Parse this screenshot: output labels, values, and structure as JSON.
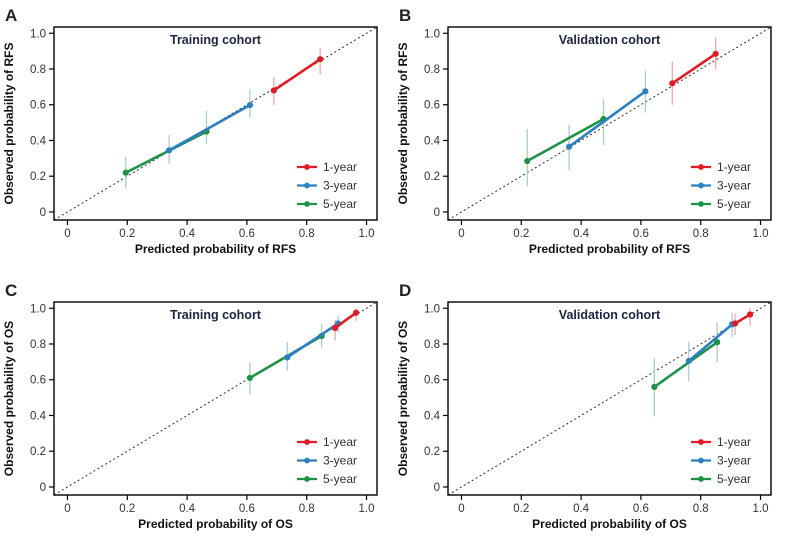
{
  "figure": {
    "description": "Calibration curves of nomograms, 2x2 panel grid",
    "background": "#ffffff",
    "frame_color": "#000000",
    "reference_line_color": "#1a1a1a",
    "title_color": "#1b2440",
    "tick_label_color": "#333333",
    "axis_title_color": "#111111",
    "legend_label_color": "#333333",
    "panel_letter_color": "#222222"
  },
  "chart_data": [
    {
      "type": "line",
      "panel_label": "A",
      "title": "Training cohort",
      "xlabel": "Predicted probability of RFS",
      "ylabel": "Observed probability of RFS",
      "xlim": [
        -0.045,
        1.035
      ],
      "ylim": [
        -0.045,
        1.035
      ],
      "ticks": [
        0,
        0.2,
        0.4,
        0.6,
        0.8,
        1.0
      ],
      "tick_labels": [
        "0",
        "0.2",
        "0.4",
        "0.6",
        "0.8",
        "1.0"
      ],
      "grid": false,
      "reference": "identity diagonal, dotted",
      "legend_position": "lower-right",
      "legend_order": [
        "1-year",
        "3-year",
        "5-year"
      ],
      "series": [
        {
          "name": "5-year",
          "color": "#1e9348",
          "ci_color": "#a7d4ae",
          "points": [
            [
              0.195,
              0.22,
              0.13,
              0.31
            ],
            [
              0.465,
              0.45,
              0.38,
              0.565
            ]
          ]
        },
        {
          "name": "3-year",
          "color": "#2d7fc1",
          "ci_color": "#a9cbe4",
          "points": [
            [
              0.34,
              0.345,
              0.27,
              0.43
            ],
            [
              0.61,
              0.598,
              0.525,
              0.685
            ]
          ]
        },
        {
          "name": "1-year",
          "color": "#e11b22",
          "ci_color": "#f5a6a6",
          "points": [
            [
              0.69,
              0.68,
              0.6,
              0.755
            ],
            [
              0.845,
              0.855,
              0.77,
              0.915
            ]
          ]
        }
      ]
    },
    {
      "type": "line",
      "panel_label": "B",
      "title": "Validation cohort",
      "xlabel": "Predicted probability of RFS",
      "ylabel": "Observed probability of RFS",
      "xlim": [
        -0.045,
        1.035
      ],
      "ylim": [
        -0.045,
        1.035
      ],
      "ticks": [
        0,
        0.2,
        0.4,
        0.6,
        0.8,
        1.0
      ],
      "tick_labels": [
        "0",
        "0.2",
        "0.4",
        "0.6",
        "0.8",
        "1.0"
      ],
      "grid": false,
      "reference": "identity diagonal, dotted",
      "legend_position": "lower-right",
      "legend_order": [
        "1-year",
        "3-year",
        "5-year"
      ],
      "series": [
        {
          "name": "5-year",
          "color": "#1e9348",
          "ci_color": "#a7d4ae",
          "points": [
            [
              0.22,
              0.285,
              0.145,
              0.465
            ],
            [
              0.475,
              0.52,
              0.375,
              0.63
            ]
          ]
        },
        {
          "name": "3-year",
          "color": "#2d7fc1",
          "ci_color": "#a9cbe4",
          "points": [
            [
              0.36,
              0.365,
              0.235,
              0.49
            ],
            [
              0.615,
              0.675,
              0.555,
              0.79
            ]
          ]
        },
        {
          "name": "1-year",
          "color": "#e11b22",
          "ci_color": "#f5a6a6",
          "points": [
            [
              0.705,
              0.72,
              0.6,
              0.84
            ],
            [
              0.85,
              0.885,
              0.8,
              0.975
            ]
          ]
        }
      ]
    },
    {
      "type": "line",
      "panel_label": "C",
      "title": "Training cohort",
      "xlabel": "Predicted probability of OS",
      "ylabel": "Observed probability of OS",
      "xlim": [
        -0.045,
        1.035
      ],
      "ylim": [
        -0.045,
        1.035
      ],
      "ticks": [
        0,
        0.2,
        0.4,
        0.6,
        0.8,
        1.0
      ],
      "tick_labels": [
        "0",
        "0.2",
        "0.4",
        "0.6",
        "0.8",
        "1.0"
      ],
      "grid": false,
      "reference": "identity diagonal, dotted",
      "legend_position": "lower-right",
      "legend_order": [
        "1-year",
        "3-year",
        "5-year"
      ],
      "series": [
        {
          "name": "5-year",
          "color": "#1e9348",
          "ci_color": "#a7d4ae",
          "points": [
            [
              0.61,
              0.61,
              0.52,
              0.7
            ],
            [
              0.85,
              0.845,
              0.78,
              0.91
            ]
          ]
        },
        {
          "name": "3-year",
          "color": "#2d7fc1",
          "ci_color": "#a9cbe4",
          "points": [
            [
              0.735,
              0.725,
              0.65,
              0.81
            ],
            [
              0.905,
              0.915,
              0.865,
              0.96
            ]
          ]
        },
        {
          "name": "1-year",
          "color": "#e11b22",
          "ci_color": "#f5a6a6",
          "points": [
            [
              0.895,
              0.89,
              0.82,
              0.935
            ],
            [
              0.965,
              0.975,
              0.93,
              1.0
            ]
          ]
        }
      ]
    },
    {
      "type": "line",
      "panel_label": "D",
      "title": "Validation cohort",
      "xlabel": "Predicted probability of OS",
      "ylabel": "Observed probability of OS",
      "xlim": [
        -0.045,
        1.035
      ],
      "ylim": [
        -0.045,
        1.035
      ],
      "ticks": [
        0,
        0.2,
        0.4,
        0.6,
        0.8,
        1.0
      ],
      "tick_labels": [
        "0",
        "0.2",
        "0.4",
        "0.6",
        "0.8",
        "1.0"
      ],
      "grid": false,
      "reference": "identity diagonal, dotted",
      "legend_position": "lower-right",
      "legend_order": [
        "1-year",
        "3-year",
        "5-year"
      ],
      "series": [
        {
          "name": "5-year",
          "color": "#1e9348",
          "ci_color": "#a7d4ae",
          "points": [
            [
              0.645,
              0.56,
              0.395,
              0.72
            ],
            [
              0.855,
              0.81,
              0.7,
              0.92
            ]
          ]
        },
        {
          "name": "3-year",
          "color": "#2d7fc1",
          "ci_color": "#a9cbe4",
          "points": [
            [
              0.76,
              0.705,
              0.59,
              0.81
            ],
            [
              0.905,
              0.91,
              0.84,
              0.975
            ]
          ]
        },
        {
          "name": "1-year",
          "color": "#e11b22",
          "ci_color": "#f5a6a6",
          "points": [
            [
              0.915,
              0.915,
              0.85,
              0.97
            ],
            [
              0.965,
              0.965,
              0.9,
              1.0
            ]
          ]
        }
      ]
    }
  ]
}
